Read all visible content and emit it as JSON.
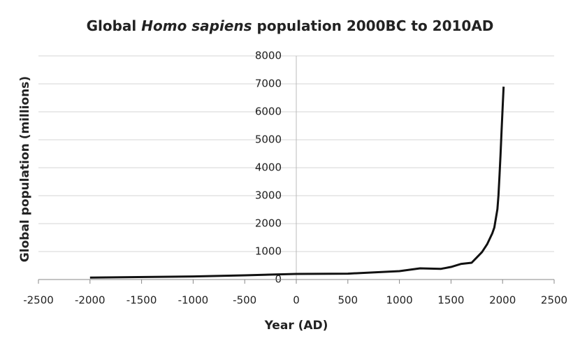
{
  "chart_data": {
    "type": "line",
    "title": [
      "Global ",
      "Homo sapiens",
      " population 2000BC to 2010AD"
    ],
    "title_italic": [
      false,
      true,
      false
    ],
    "x_label": "Year (AD)",
    "y_label": "Global population (millions)",
    "x": [
      -2000,
      -1000,
      -500,
      0,
      500,
      1000,
      1200,
      1300,
      1400,
      1500,
      1600,
      1700,
      1750,
      1800,
      1850,
      1900,
      1920,
      1950,
      1960,
      1970,
      1980,
      1990,
      2000,
      2010
    ],
    "values": [
      70,
      110,
      150,
      200,
      210,
      300,
      400,
      390,
      380,
      450,
      560,
      600,
      790,
      980,
      1260,
      1650,
      1860,
      2520,
      3000,
      3700,
      4450,
      5300,
      6100,
      6900
    ],
    "color": "#111111",
    "xlim": [
      -2500,
      2500
    ],
    "xticks": [
      -2500,
      -2000,
      -1500,
      -1000,
      -500,
      0,
      500,
      1000,
      1500,
      2000,
      2500
    ],
    "ylim": [
      0,
      8000
    ],
    "yticks": [
      0,
      1000,
      2000,
      3000,
      4000,
      5000,
      6000,
      7000,
      8000
    ],
    "grid": true
  }
}
